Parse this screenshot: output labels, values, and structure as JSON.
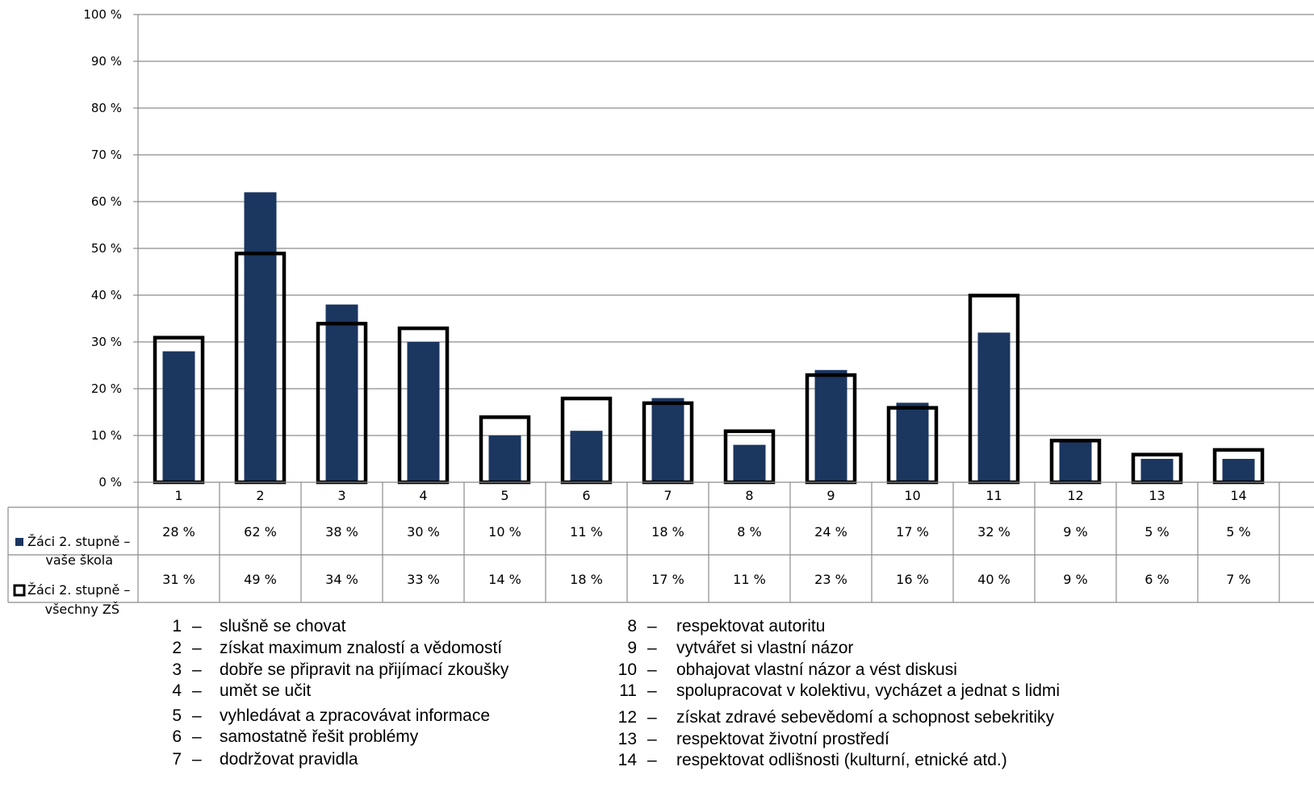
{
  "chart_data": {
    "type": "bar",
    "categories": [
      "1",
      "2",
      "3",
      "4",
      "5",
      "6",
      "7",
      "8",
      "9",
      "10",
      "11",
      "12",
      "13",
      "14"
    ],
    "series": [
      {
        "name": "Žáci 2. stupně – vaše škola",
        "values": [
          28,
          62,
          38,
          30,
          10,
          11,
          18,
          8,
          24,
          17,
          32,
          9,
          5,
          5
        ],
        "labels": [
          "28 %",
          "62 %",
          "38 %",
          "30 %",
          "10 %",
          "11 %",
          "18 %",
          "8 %",
          "24 %",
          "17 %",
          "32 %",
          "9 %",
          "5 %",
          "5 %"
        ],
        "color": "#1b365f",
        "style": "filled"
      },
      {
        "name": "Žáci 2. stupně – všechny ZŠ",
        "values": [
          31,
          49,
          34,
          33,
          14,
          18,
          17,
          11,
          23,
          16,
          40,
          9,
          6,
          7
        ],
        "labels": [
          "31 %",
          "49 %",
          "34 %",
          "33 %",
          "14 %",
          "18 %",
          "17 %",
          "11 %",
          "23 %",
          "16 %",
          "40 %",
          "9 %",
          "6 %",
          "7 %"
        ],
        "color": "#000000",
        "style": "outline"
      }
    ],
    "yticks": [
      "0 %",
      "10 %",
      "20 %",
      "30 %",
      "40 %",
      "50 %",
      "60 %",
      "70 %",
      "80 %",
      "90 %",
      "100 %"
    ],
    "ylim": [
      0,
      100
    ],
    "grid": true,
    "legend_placement": "data-table"
  },
  "legend_table": {
    "row1_line1": "Žáci 2. stupně –",
    "row1_line2": "vaše škola",
    "row2_line1": "Žáci 2. stupně –",
    "row2_line2": "všechny ZŠ"
  },
  "category_legend": [
    {
      "num": "1",
      "text": "slušně se chovat"
    },
    {
      "num": "2",
      "text": "získat maximum znalostí a vědomostí"
    },
    {
      "num": "3",
      "text": "dobře se připravit na přijímací zkoušky"
    },
    {
      "num": "4",
      "text": "umět se učit"
    },
    {
      "num": "5",
      "text": "vyhledávat a zpracovávat informace"
    },
    {
      "num": "6",
      "text": "samostatně řešit problémy"
    },
    {
      "num": "7",
      "text": "dodržovat pravidla"
    },
    {
      "num": "8",
      "text": "respektovat autoritu"
    },
    {
      "num": "9",
      "text": "vytvářet si vlastní názor"
    },
    {
      "num": "10",
      "text": "obhajovat vlastní názor a vést diskusi"
    },
    {
      "num": "11",
      "text": "spolupracovat v kolektivu, vycházet a jednat s lidmi"
    },
    {
      "num": "12",
      "text": "získat zdravé sebevědomí a schopnost sebekritiky"
    },
    {
      "num": "13",
      "text": "respektovat životní prostředí"
    },
    {
      "num": "14",
      "text": "respektovat odlišnosti (kulturní, etnické atd.)"
    }
  ],
  "dash": "–"
}
